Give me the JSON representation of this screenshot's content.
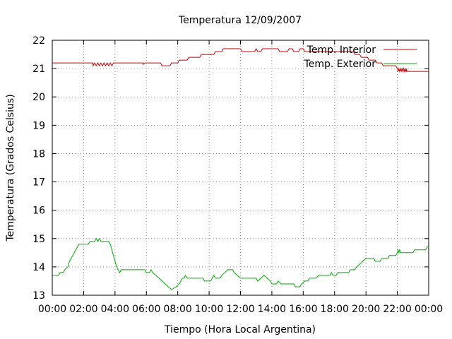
{
  "chart_data": {
    "type": "line",
    "title": "Temperatura 12/09/2007",
    "xlabel": "Tiempo (Hora Local Argentina)",
    "ylabel": "Temperatura (Grados Celsius)",
    "x_ticks": [
      "00:00",
      "02:00",
      "04:00",
      "06:00",
      "08:00",
      "10:00",
      "12:00",
      "14:00",
      "16:00",
      "18:00",
      "20:00",
      "22:00",
      "00:00"
    ],
    "y_ticks": [
      "13",
      "14",
      "15",
      "16",
      "17",
      "18",
      "19",
      "20",
      "21",
      "22"
    ],
    "xlim_hours": [
      0,
      24
    ],
    "ylim": [
      13,
      22
    ],
    "grid": true,
    "legend_position": "top-right",
    "series": [
      {
        "name": "Temp. Interior",
        "color": "#cc0000",
        "points": [
          [
            0,
            21.2
          ],
          [
            2.6,
            21.2
          ],
          [
            2.6,
            21.1
          ],
          [
            2.7,
            21.2
          ],
          [
            2.8,
            21.1
          ],
          [
            2.9,
            21.2
          ],
          [
            3.0,
            21.1
          ],
          [
            3.1,
            21.2
          ],
          [
            3.2,
            21.1
          ],
          [
            3.3,
            21.2
          ],
          [
            3.4,
            21.1
          ],
          [
            3.5,
            21.2
          ],
          [
            3.6,
            21.1
          ],
          [
            3.7,
            21.2
          ],
          [
            3.8,
            21.1
          ],
          [
            3.9,
            21.2
          ],
          [
            5.8,
            21.2
          ],
          [
            5.8,
            21.15
          ],
          [
            5.9,
            21.2
          ],
          [
            6.9,
            21.2
          ],
          [
            7.0,
            21.1
          ],
          [
            7.5,
            21.1
          ],
          [
            7.6,
            21.2
          ],
          [
            8.0,
            21.2
          ],
          [
            8.1,
            21.3
          ],
          [
            8.6,
            21.3
          ],
          [
            8.7,
            21.4
          ],
          [
            9.4,
            21.4
          ],
          [
            9.5,
            21.5
          ],
          [
            10.3,
            21.5
          ],
          [
            10.4,
            21.6
          ],
          [
            10.8,
            21.6
          ],
          [
            10.9,
            21.7
          ],
          [
            12.0,
            21.7
          ],
          [
            12.1,
            21.6
          ],
          [
            12.9,
            21.6
          ],
          [
            13.0,
            21.7
          ],
          [
            13.1,
            21.6
          ],
          [
            13.3,
            21.6
          ],
          [
            13.4,
            21.7
          ],
          [
            14.4,
            21.7
          ],
          [
            14.5,
            21.6
          ],
          [
            15.0,
            21.6
          ],
          [
            15.1,
            21.7
          ],
          [
            15.3,
            21.7
          ],
          [
            15.4,
            21.6
          ],
          [
            15.7,
            21.6
          ],
          [
            15.8,
            21.7
          ],
          [
            16.0,
            21.7
          ],
          [
            16.1,
            21.6
          ],
          [
            19.2,
            21.6
          ],
          [
            19.3,
            21.5
          ],
          [
            19.6,
            21.5
          ],
          [
            19.7,
            21.4
          ],
          [
            20.1,
            21.4
          ],
          [
            20.2,
            21.3
          ],
          [
            20.6,
            21.3
          ],
          [
            20.7,
            21.2
          ],
          [
            21.0,
            21.2
          ],
          [
            21.1,
            21.1
          ],
          [
            21.9,
            21.1
          ],
          [
            22.0,
            21.0
          ],
          [
            22.05,
            20.9
          ],
          [
            22.1,
            21.0
          ],
          [
            22.15,
            20.9
          ],
          [
            22.2,
            21.0
          ],
          [
            22.25,
            20.9
          ],
          [
            22.3,
            21.0
          ],
          [
            22.35,
            20.9
          ],
          [
            22.4,
            21.0
          ],
          [
            22.45,
            20.9
          ],
          [
            22.5,
            21.0
          ],
          [
            22.55,
            20.9
          ],
          [
            22.6,
            21.0
          ],
          [
            22.6,
            20.9
          ],
          [
            24.0,
            20.9
          ]
        ]
      },
      {
        "name": "Temp. Exterior",
        "color": "#00aa00",
        "points": [
          [
            0,
            13.7
          ],
          [
            0.4,
            13.7
          ],
          [
            0.5,
            13.8
          ],
          [
            0.7,
            13.8
          ],
          [
            0.8,
            13.9
          ],
          [
            1.0,
            14.0
          ],
          [
            1.1,
            14.2
          ],
          [
            1.2,
            14.3
          ],
          [
            1.3,
            14.4
          ],
          [
            1.4,
            14.5
          ],
          [
            1.5,
            14.6
          ],
          [
            1.6,
            14.7
          ],
          [
            1.7,
            14.8
          ],
          [
            2.0,
            14.8
          ],
          [
            2.3,
            14.8
          ],
          [
            2.4,
            14.9
          ],
          [
            2.7,
            14.9
          ],
          [
            2.8,
            15.0
          ],
          [
            2.9,
            14.9
          ],
          [
            3.0,
            15.0
          ],
          [
            3.1,
            14.9
          ],
          [
            3.6,
            14.9
          ],
          [
            3.7,
            14.8
          ],
          [
            3.8,
            14.6
          ],
          [
            3.9,
            14.4
          ],
          [
            4.0,
            14.2
          ],
          [
            4.1,
            14.0
          ],
          [
            4.2,
            13.9
          ],
          [
            4.3,
            13.8
          ],
          [
            4.4,
            13.9
          ],
          [
            5.9,
            13.9
          ],
          [
            6.0,
            13.8
          ],
          [
            6.2,
            13.8
          ],
          [
            6.3,
            13.9
          ],
          [
            6.4,
            13.8
          ],
          [
            6.6,
            13.7
          ],
          [
            6.8,
            13.6
          ],
          [
            7.0,
            13.5
          ],
          [
            7.2,
            13.4
          ],
          [
            7.4,
            13.3
          ],
          [
            7.6,
            13.2
          ],
          [
            7.9,
            13.3
          ],
          [
            8.1,
            13.4
          ],
          [
            8.2,
            13.5
          ],
          [
            8.3,
            13.6
          ],
          [
            8.4,
            13.6
          ],
          [
            8.5,
            13.7
          ],
          [
            8.6,
            13.6
          ],
          [
            9.6,
            13.6
          ],
          [
            9.7,
            13.5
          ],
          [
            10.1,
            13.5
          ],
          [
            10.2,
            13.6
          ],
          [
            10.3,
            13.7
          ],
          [
            10.4,
            13.6
          ],
          [
            10.7,
            13.6
          ],
          [
            10.8,
            13.7
          ],
          [
            11.0,
            13.8
          ],
          [
            11.2,
            13.9
          ],
          [
            11.5,
            13.9
          ],
          [
            11.6,
            13.8
          ],
          [
            11.8,
            13.7
          ],
          [
            12.0,
            13.6
          ],
          [
            13.0,
            13.6
          ],
          [
            13.1,
            13.5
          ],
          [
            13.3,
            13.6
          ],
          [
            13.5,
            13.7
          ],
          [
            13.7,
            13.6
          ],
          [
            13.9,
            13.5
          ],
          [
            14.0,
            13.4
          ],
          [
            14.3,
            13.4
          ],
          [
            14.4,
            13.5
          ],
          [
            14.6,
            13.4
          ],
          [
            15.4,
            13.4
          ],
          [
            15.5,
            13.3
          ],
          [
            15.8,
            13.3
          ],
          [
            15.9,
            13.4
          ],
          [
            16.1,
            13.5
          ],
          [
            16.3,
            13.5
          ],
          [
            16.4,
            13.6
          ],
          [
            16.8,
            13.6
          ],
          [
            17.0,
            13.7
          ],
          [
            17.7,
            13.7
          ],
          [
            17.8,
            13.8
          ],
          [
            17.9,
            13.7
          ],
          [
            18.1,
            13.7
          ],
          [
            18.2,
            13.8
          ],
          [
            18.9,
            13.8
          ],
          [
            19.0,
            13.9
          ],
          [
            19.3,
            13.9
          ],
          [
            19.4,
            14.0
          ],
          [
            19.6,
            14.1
          ],
          [
            19.8,
            14.2
          ],
          [
            20.0,
            14.3
          ],
          [
            20.5,
            14.3
          ],
          [
            20.6,
            14.2
          ],
          [
            20.9,
            14.2
          ],
          [
            21.0,
            14.3
          ],
          [
            21.4,
            14.3
          ],
          [
            21.5,
            14.4
          ],
          [
            21.9,
            14.4
          ],
          [
            22.0,
            14.5
          ],
          [
            22.05,
            14.6
          ],
          [
            22.1,
            14.5
          ],
          [
            22.15,
            14.6
          ],
          [
            22.2,
            14.5
          ],
          [
            23.0,
            14.5
          ],
          [
            23.1,
            14.6
          ],
          [
            23.8,
            14.6
          ],
          [
            23.9,
            14.7
          ],
          [
            24.0,
            14.7
          ]
        ]
      }
    ]
  }
}
